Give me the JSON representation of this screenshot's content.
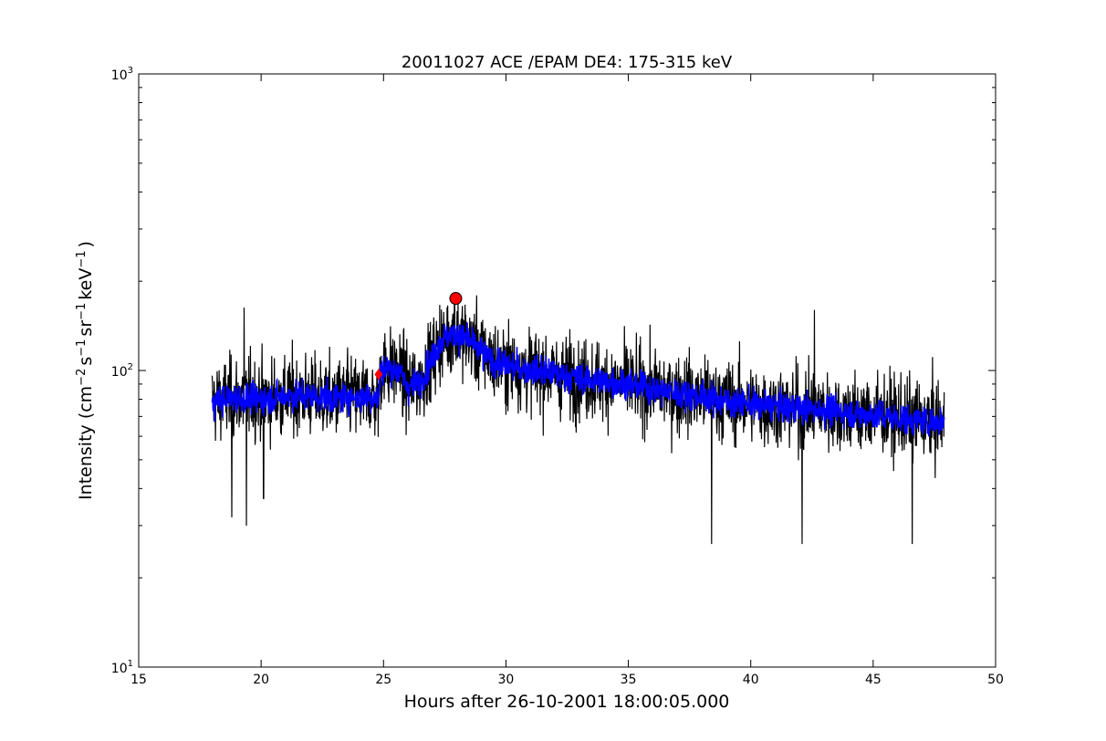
{
  "chart_data": {
    "type": "line",
    "title": "20011027 ACE /EPAM DE4: 175-315 keV",
    "xlabel": "Hours after 26-10-2001 18:00:05.000",
    "ylabel": {
      "base": "Intensity (cm",
      "exp1": "−2",
      "s": "s",
      "exp2": "−1",
      "sr": "sr",
      "exp3": "−1",
      "kev": "keV",
      "exp4": "−1",
      "close": ")"
    },
    "xlim": [
      15,
      50
    ],
    "ylim": [
      10,
      1000
    ],
    "yscale": "log",
    "grid": false,
    "x_ticks": [
      15,
      20,
      25,
      30,
      35,
      40,
      45,
      50
    ],
    "y_ticks": [
      {
        "value": 10,
        "base": "10",
        "exp": "1"
      },
      {
        "value": 100,
        "base": "10",
        "exp": "2"
      },
      {
        "value": 1000,
        "base": "10",
        "exp": "3"
      }
    ],
    "series": [
      {
        "color": "#000000",
        "style": "raw",
        "x": [
          18.0,
          18.5,
          19.0,
          19.3,
          19.6,
          20.0,
          20.5,
          21.0,
          21.5,
          22.0,
          22.5,
          23.0,
          23.5,
          24.0,
          24.5,
          24.8,
          24.9,
          25.2,
          25.6,
          26.0,
          26.5,
          27.0,
          27.3,
          27.6,
          28.0,
          28.4,
          28.8,
          29.2,
          29.6,
          30.0,
          30.5,
          31.0,
          31.5,
          32.0,
          32.5,
          33.0,
          33.5,
          34.0,
          34.5,
          35.0,
          35.5,
          36.0,
          36.5,
          37.0,
          37.5,
          38.0,
          38.5,
          39.0,
          39.5,
          40.0,
          40.5,
          41.0,
          41.5,
          42.0,
          42.5,
          43.0,
          43.5,
          44.0,
          44.5,
          45.0,
          45.5,
          46.0,
          46.5,
          47.0,
          47.5,
          47.9
        ],
        "y": [
          78,
          80,
          81,
          80,
          82,
          80,
          81,
          82,
          83,
          82,
          81,
          80,
          82,
          81,
          82,
          80,
          100,
          102,
          100,
          88,
          92,
          110,
          125,
          130,
          132,
          128,
          120,
          112,
          106,
          104,
          102,
          100,
          99,
          97,
          96,
          94,
          93,
          92,
          91,
          90,
          88,
          87,
          85,
          84,
          83,
          82,
          80,
          79,
          78,
          77,
          76,
          76,
          75,
          75,
          74,
          74,
          73,
          72,
          71,
          71,
          70,
          69,
          68,
          68,
          67,
          67
        ],
        "spikes_low": [
          [
            18.8,
            32
          ],
          [
            19.4,
            30
          ],
          [
            20.1,
            37
          ],
          [
            38.4,
            26
          ],
          [
            42.1,
            26
          ],
          [
            46.6,
            26
          ]
        ],
        "spikes_high": [
          [
            19.3,
            163
          ],
          [
            27.9,
            175
          ],
          [
            42.6,
            160
          ]
        ]
      },
      {
        "color": "#0000ff",
        "style": "smoothed",
        "x": [
          18.0,
          18.5,
          19.0,
          19.5,
          20.0,
          20.5,
          21.0,
          21.5,
          22.0,
          22.5,
          23.0,
          23.5,
          24.0,
          24.5,
          24.8,
          24.9,
          25.2,
          25.6,
          26.0,
          26.5,
          27.0,
          27.3,
          27.6,
          28.0,
          28.4,
          28.8,
          29.2,
          29.6,
          30.0,
          30.5,
          31.0,
          31.5,
          32.0,
          32.5,
          33.0,
          33.5,
          34.0,
          34.5,
          35.0,
          35.5,
          36.0,
          36.5,
          37.0,
          37.5,
          38.0,
          38.5,
          39.0,
          39.5,
          40.0,
          40.5,
          41.0,
          41.5,
          42.0,
          42.5,
          43.0,
          43.5,
          44.0,
          44.5,
          45.0,
          45.5,
          46.0,
          46.5,
          47.0,
          47.5,
          47.9
        ],
        "y": [
          78,
          80,
          81,
          80,
          80,
          81,
          82,
          83,
          82,
          81,
          80,
          82,
          81,
          82,
          80,
          100,
          102,
          100,
          88,
          92,
          110,
          125,
          130,
          132,
          128,
          120,
          112,
          106,
          104,
          102,
          100,
          99,
          97,
          96,
          94,
          93,
          92,
          91,
          90,
          88,
          87,
          85,
          84,
          83,
          82,
          80,
          79,
          78,
          77,
          76,
          76,
          75,
          75,
          74,
          74,
          73,
          72,
          71,
          71,
          70,
          69,
          68,
          68,
          67,
          67
        ]
      }
    ],
    "markers": [
      {
        "type": "diamond",
        "color": "#ff0000",
        "x": 24.8,
        "y": 97
      },
      {
        "type": "circle",
        "color": "#ff0000",
        "x": 27.95,
        "y": 175
      }
    ]
  }
}
